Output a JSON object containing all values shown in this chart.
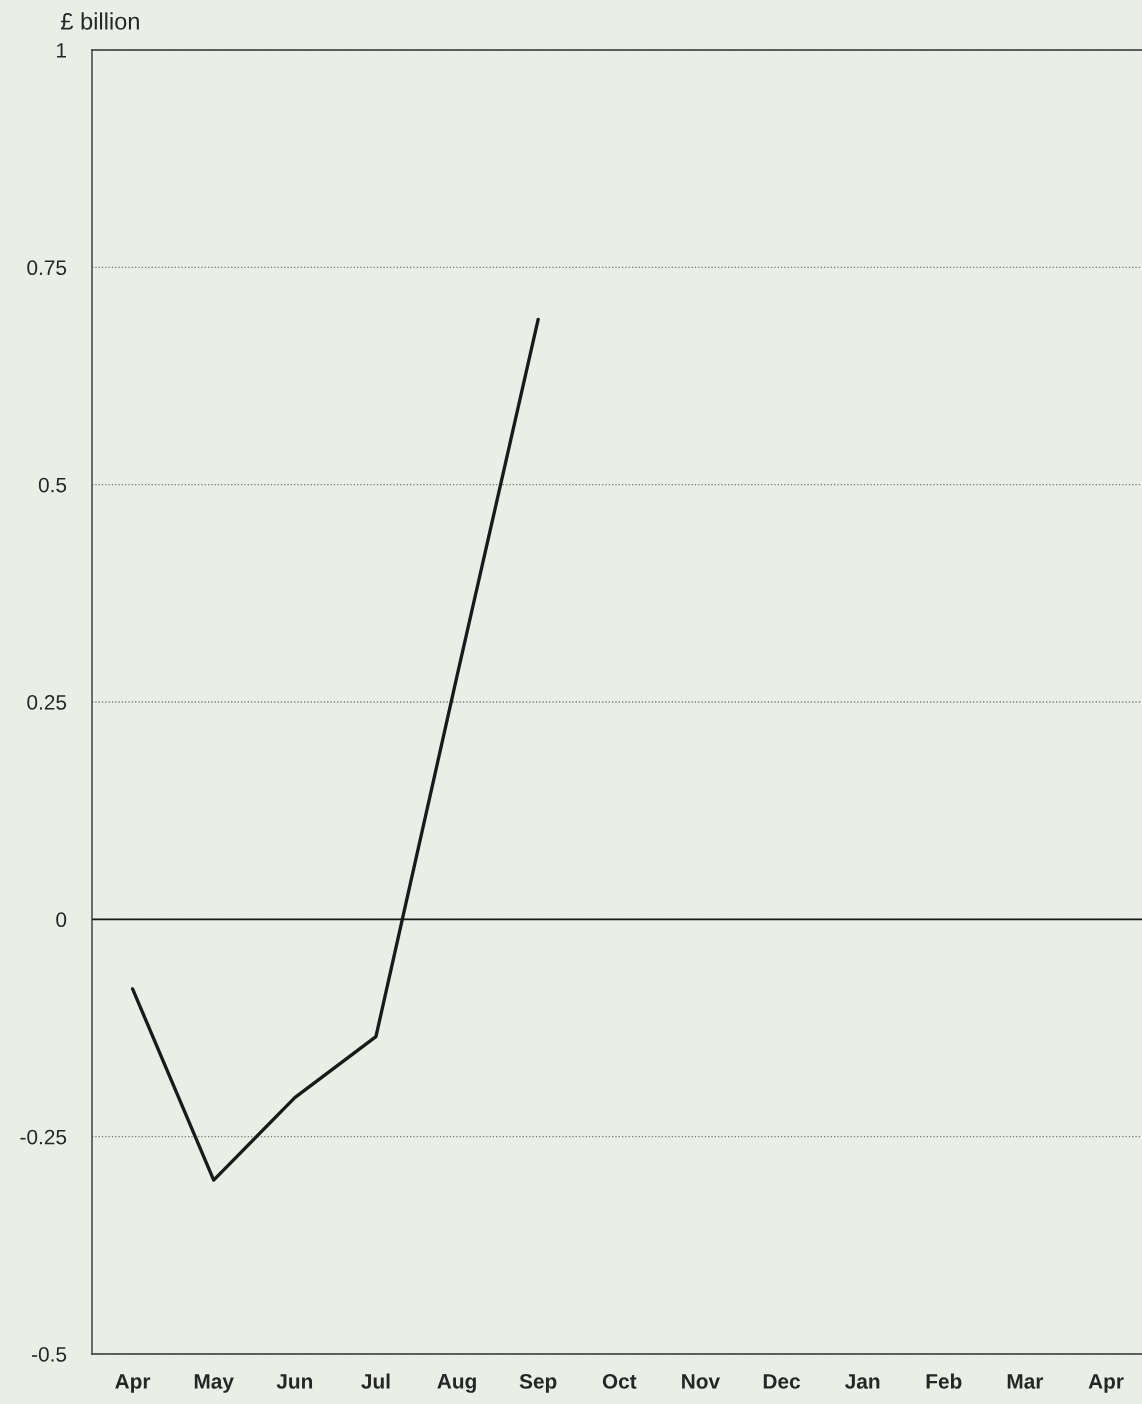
{
  "chart_data": {
    "type": "line",
    "ylabel": "£ billion",
    "categories": [
      "Apr",
      "May",
      "Jun",
      "Jul",
      "Aug",
      "Sep",
      "Oct",
      "Nov",
      "Dec",
      "Jan",
      "Feb",
      "Mar",
      "Apr"
    ],
    "series": [
      {
        "color": "#1a1a1a",
        "values": [
          -0.08,
          -0.3,
          -0.205,
          -0.135,
          0.28,
          0.69,
          null,
          null,
          null,
          null,
          null,
          null,
          null
        ]
      }
    ],
    "ylim": [
      -0.5,
      1
    ],
    "yticks": [
      -0.5,
      -0.25,
      0,
      0.25,
      0.5,
      0.75,
      1
    ],
    "grid": "y",
    "ref_lines": [
      {
        "axis": "y",
        "value": 0,
        "color": "#1a1a1a",
        "line_style": "solid"
      }
    ],
    "marker": "none",
    "line_style": "solid",
    "legend": false
  }
}
